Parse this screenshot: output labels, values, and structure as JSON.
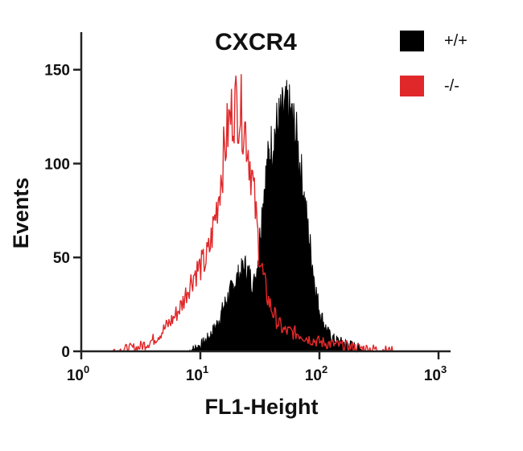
{
  "chart_data": {
    "type": "area",
    "title": "CXCR4",
    "xlabel": "FL1-Height",
    "ylabel": "Events",
    "x_scale": "log",
    "xlim": [
      1,
      1000
    ],
    "ylim": [
      0,
      170
    ],
    "x_ticks": [
      {
        "value": 1,
        "base": "10",
        "exp": "0"
      },
      {
        "value": 10,
        "base": "10",
        "exp": "1"
      },
      {
        "value": 100,
        "base": "10",
        "exp": "2"
      },
      {
        "value": 1000,
        "base": "10",
        "exp": "3"
      }
    ],
    "y_ticks": [
      {
        "value": 0,
        "label": "0"
      },
      {
        "value": 50,
        "label": "50"
      },
      {
        "value": 100,
        "label": "100"
      },
      {
        "value": 150,
        "label": "150"
      }
    ],
    "legend_position": "top-right",
    "grid": false,
    "series": [
      {
        "name": "+/+",
        "color": "#000000",
        "style": "filled",
        "x": [
          8,
          10,
          12,
          14,
          16,
          18,
          20,
          22,
          24,
          26,
          28,
          30,
          32,
          34,
          36,
          38,
          40,
          43,
          46,
          50,
          54,
          58,
          62,
          66,
          70,
          75,
          80,
          86,
          92,
          100,
          110,
          120,
          135,
          150,
          170,
          190,
          210,
          240
        ],
        "y": [
          0,
          3,
          8,
          15,
          25,
          32,
          38,
          42,
          45,
          40,
          35,
          45,
          65,
          85,
          95,
          105,
          110,
          118,
          122,
          126,
          128,
          124,
          118,
          108,
          95,
          80,
          65,
          50,
          35,
          22,
          14,
          9,
          6,
          5,
          4,
          3,
          2,
          0
        ]
      },
      {
        "name": "-/-",
        "color": "#e0282a",
        "style": "outline",
        "x": [
          1.8,
          3,
          4,
          5,
          6,
          7,
          8,
          9,
          10,
          11,
          12,
          13,
          14,
          15,
          16,
          17,
          18,
          19,
          20,
          21,
          22,
          23,
          24,
          25,
          27,
          29,
          31,
          34,
          37,
          40,
          45,
          50,
          60,
          70,
          80,
          100,
          150,
          200,
          300,
          420
        ],
        "y": [
          0,
          2,
          6,
          12,
          18,
          25,
          35,
          42,
          45,
          48,
          55,
          68,
          80,
          95,
          108,
          118,
          125,
          130,
          132,
          130,
          128,
          122,
          118,
          110,
          95,
          75,
          55,
          38,
          28,
          22,
          15,
          11,
          10,
          9,
          7,
          5,
          3,
          2,
          1,
          0
        ]
      }
    ]
  }
}
